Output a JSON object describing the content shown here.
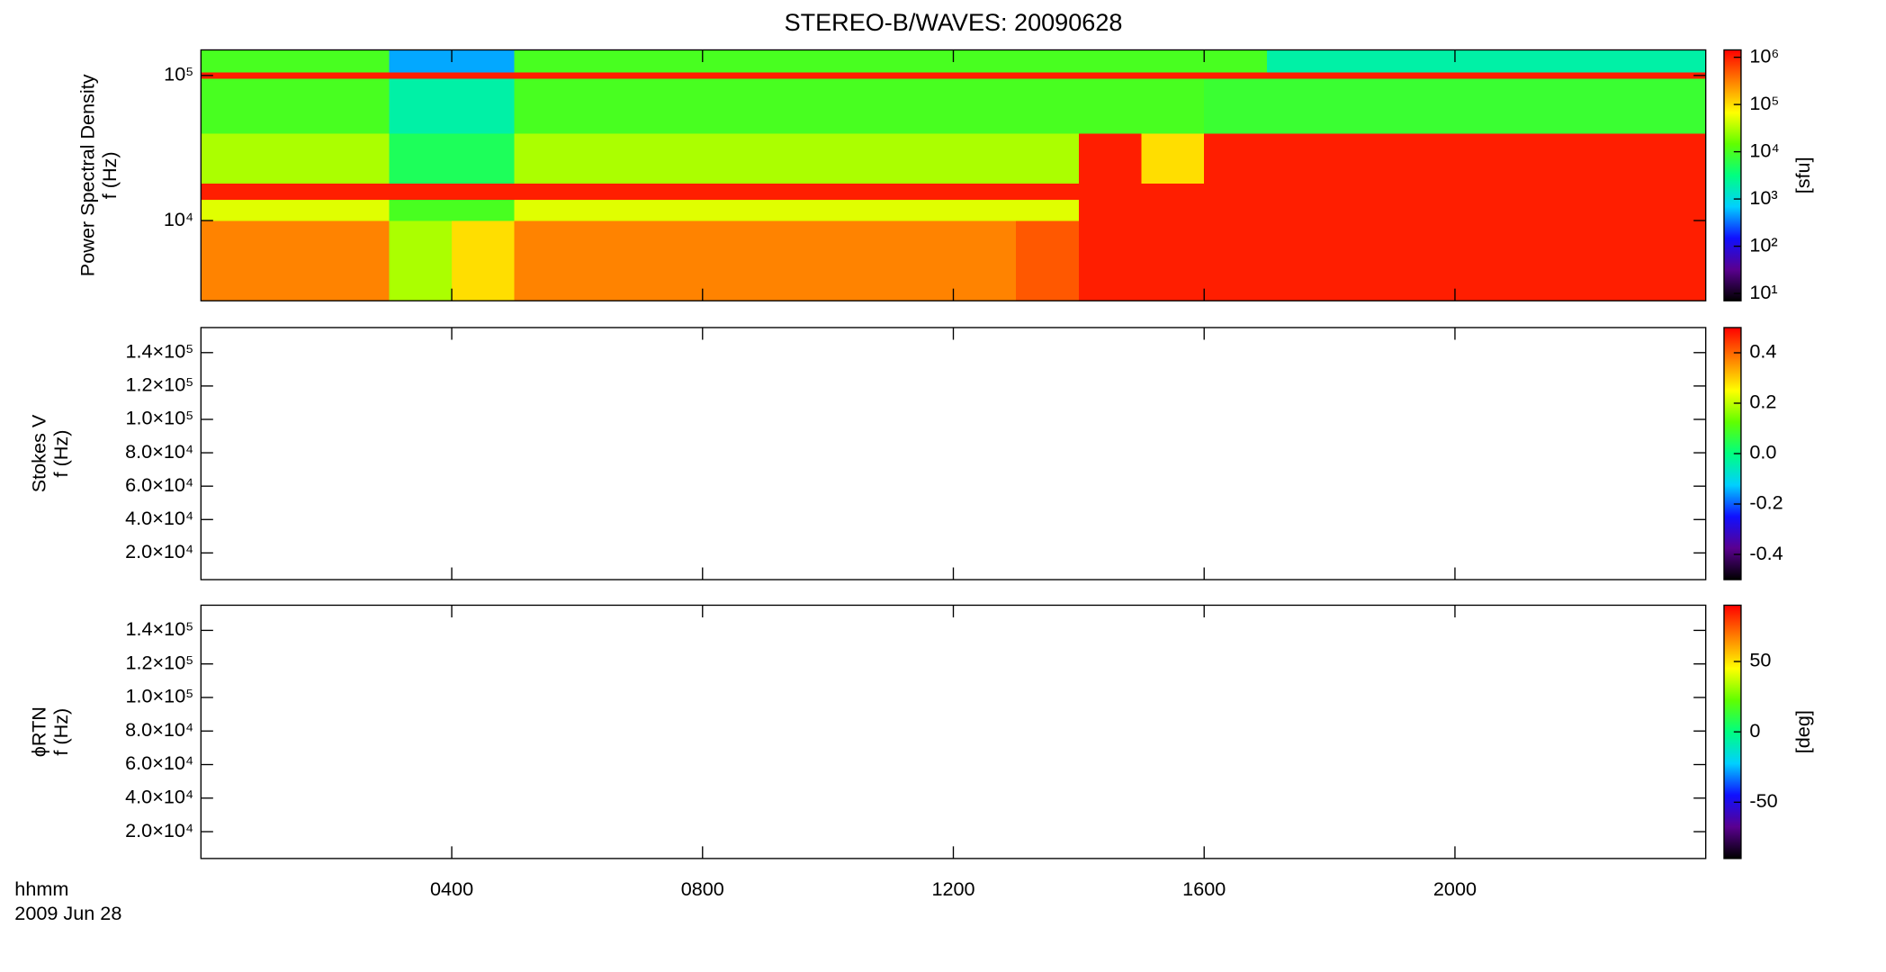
{
  "chart_data": {
    "type": "spectrogram",
    "title": "STEREO-B/WAVES: 20090628",
    "xlim": [
      0,
      1440
    ],
    "xticks": [
      {
        "value": 240,
        "label": "0400"
      },
      {
        "value": 480,
        "label": "0800"
      },
      {
        "value": 720,
        "label": "1200"
      },
      {
        "value": 960,
        "label": "1600"
      },
      {
        "value": 1200,
        "label": "2000"
      }
    ],
    "xlabel": [
      "hhmm",
      "2009 Jun 28"
    ],
    "colormap": [
      "#000000",
      "#5a0090",
      "#1010ff",
      "#00d0ff",
      "#00ff80",
      "#60ff00",
      "#ffff00",
      "#ff8000",
      "#ff0000"
    ],
    "x_bins": [
      0,
      60,
      120,
      180,
      240,
      300,
      360,
      420,
      480,
      540,
      600,
      660,
      720,
      780,
      840,
      900,
      960,
      1020,
      1080,
      1140,
      1200,
      1260,
      1320,
      1380,
      1440
    ],
    "panels": [
      {
        "ylabel": [
          "Power Spectral Density",
          "f (Hz)"
        ],
        "ylog": true,
        "ylim": [
          2800,
          150000
        ],
        "yticks": [
          {
            "value": 10000,
            "label": "10⁴"
          },
          {
            "value": 100000,
            "label": "10⁵"
          }
        ],
        "clog": true,
        "clim": [
          7,
          1430000
        ],
        "cticks": [
          {
            "value": 10,
            "label": "10¹"
          },
          {
            "value": 100,
            "label": "10²"
          },
          {
            "value": 1000,
            "label": "10³"
          },
          {
            "value": 10000,
            "label": "10⁴"
          },
          {
            "value": 100000,
            "label": "10⁵"
          },
          {
            "value": 1000000,
            "label": "10⁶"
          }
        ],
        "clabel": "[sfu]",
        "y_bins": [
          2800,
          10000,
          14000,
          18000,
          40000,
          95000,
          105000,
          150000
        ],
        "z": [
          [
            300000,
            300000,
            300000,
            30000,
            100000,
            300000,
            300000,
            300000,
            300000,
            300000,
            300000,
            300000,
            300000,
            500000,
            1000000,
            1000000,
            1000000,
            1000000,
            1000000,
            1000000,
            1000000,
            1000000,
            1000000,
            1000000
          ],
          [
            50000,
            50000,
            50000,
            10000,
            10000,
            50000,
            50000,
            50000,
            50000,
            50000,
            50000,
            50000,
            50000,
            50000,
            1000000,
            1000000,
            1000000,
            1000000,
            1000000,
            1000000,
            1000000,
            1000000,
            1000000,
            1000000
          ],
          [
            1000000,
            1000000,
            1000000,
            1000000,
            1000000,
            1000000,
            1000000,
            1000000,
            1000000,
            1000000,
            1000000,
            1000000,
            1000000,
            1000000,
            1000000,
            1000000,
            1000000,
            1000000,
            1000000,
            1000000,
            1000000,
            1000000,
            1000000,
            1000000
          ],
          [
            30000,
            30000,
            30000,
            5000,
            5000,
            30000,
            30000,
            30000,
            30000,
            30000,
            30000,
            30000,
            30000,
            30000,
            1000000,
            100000,
            1000000,
            1000000,
            1000000,
            1000000,
            1000000,
            1000000,
            1000000,
            1000000
          ],
          [
            10000,
            10000,
            10000,
            2000,
            2000,
            10000,
            10000,
            10000,
            10000,
            10000,
            10000,
            10000,
            10000,
            10000,
            10000,
            10000,
            8000,
            8000,
            8000,
            8000,
            8000,
            8000,
            8000,
            8000
          ],
          [
            1000000,
            1000000,
            1000000,
            1000000,
            1000000,
            1000000,
            1000000,
            1000000,
            1000000,
            1000000,
            1000000,
            1000000,
            1000000,
            1000000,
            1000000,
            1000000,
            1000000,
            1000000,
            1000000,
            1000000,
            1000000,
            1000000,
            1000000,
            1000000
          ],
          [
            10000,
            10000,
            10000,
            500,
            500,
            10000,
            10000,
            10000,
            10000,
            10000,
            10000,
            10000,
            10000,
            10000,
            10000,
            10000,
            10000,
            2000,
            2000,
            2000,
            2000,
            2000,
            2000,
            2000
          ]
        ]
      },
      {
        "ylabel": [
          "Stokes V",
          "f (Hz)"
        ],
        "ylog": false,
        "ylim": [
          4000,
          155000
        ],
        "yticks": [
          {
            "value": 20000,
            "label": "2.0×10⁴"
          },
          {
            "value": 40000,
            "label": "4.0×10⁴"
          },
          {
            "value": 60000,
            "label": "6.0×10⁴"
          },
          {
            "value": 80000,
            "label": "8.0×10⁴"
          },
          {
            "value": 100000,
            "label": "1.0×10⁵"
          },
          {
            "value": 120000,
            "label": "1.2×10⁵"
          },
          {
            "value": 140000,
            "label": "1.4×10⁵"
          }
        ],
        "clog": false,
        "clim": [
          -0.5,
          0.5
        ],
        "cticks": [
          -0.4,
          -0.2,
          {
            "value": 0,
            "label": "0.0"
          },
          0.2,
          0.4
        ]
      },
      {
        "ylabel": [
          "ϕRTN",
          "f (Hz)"
        ],
        "ylog": false,
        "ylim": [
          4000,
          155000
        ],
        "yticks": [
          {
            "value": 20000,
            "label": "2.0×10⁴"
          },
          {
            "value": 40000,
            "label": "4.0×10⁴"
          },
          {
            "value": 60000,
            "label": "6.0×10⁴"
          },
          {
            "value": 80000,
            "label": "8.0×10⁴"
          },
          {
            "value": 100000,
            "label": "1.0×10⁵"
          },
          {
            "value": 120000,
            "label": "1.2×10⁵"
          },
          {
            "value": 140000,
            "label": "1.4×10⁵"
          }
        ],
        "clog": false,
        "clim": [
          -90,
          90
        ],
        "cticks": [
          -50,
          0,
          50
        ],
        "clabel": "[deg]"
      }
    ]
  }
}
